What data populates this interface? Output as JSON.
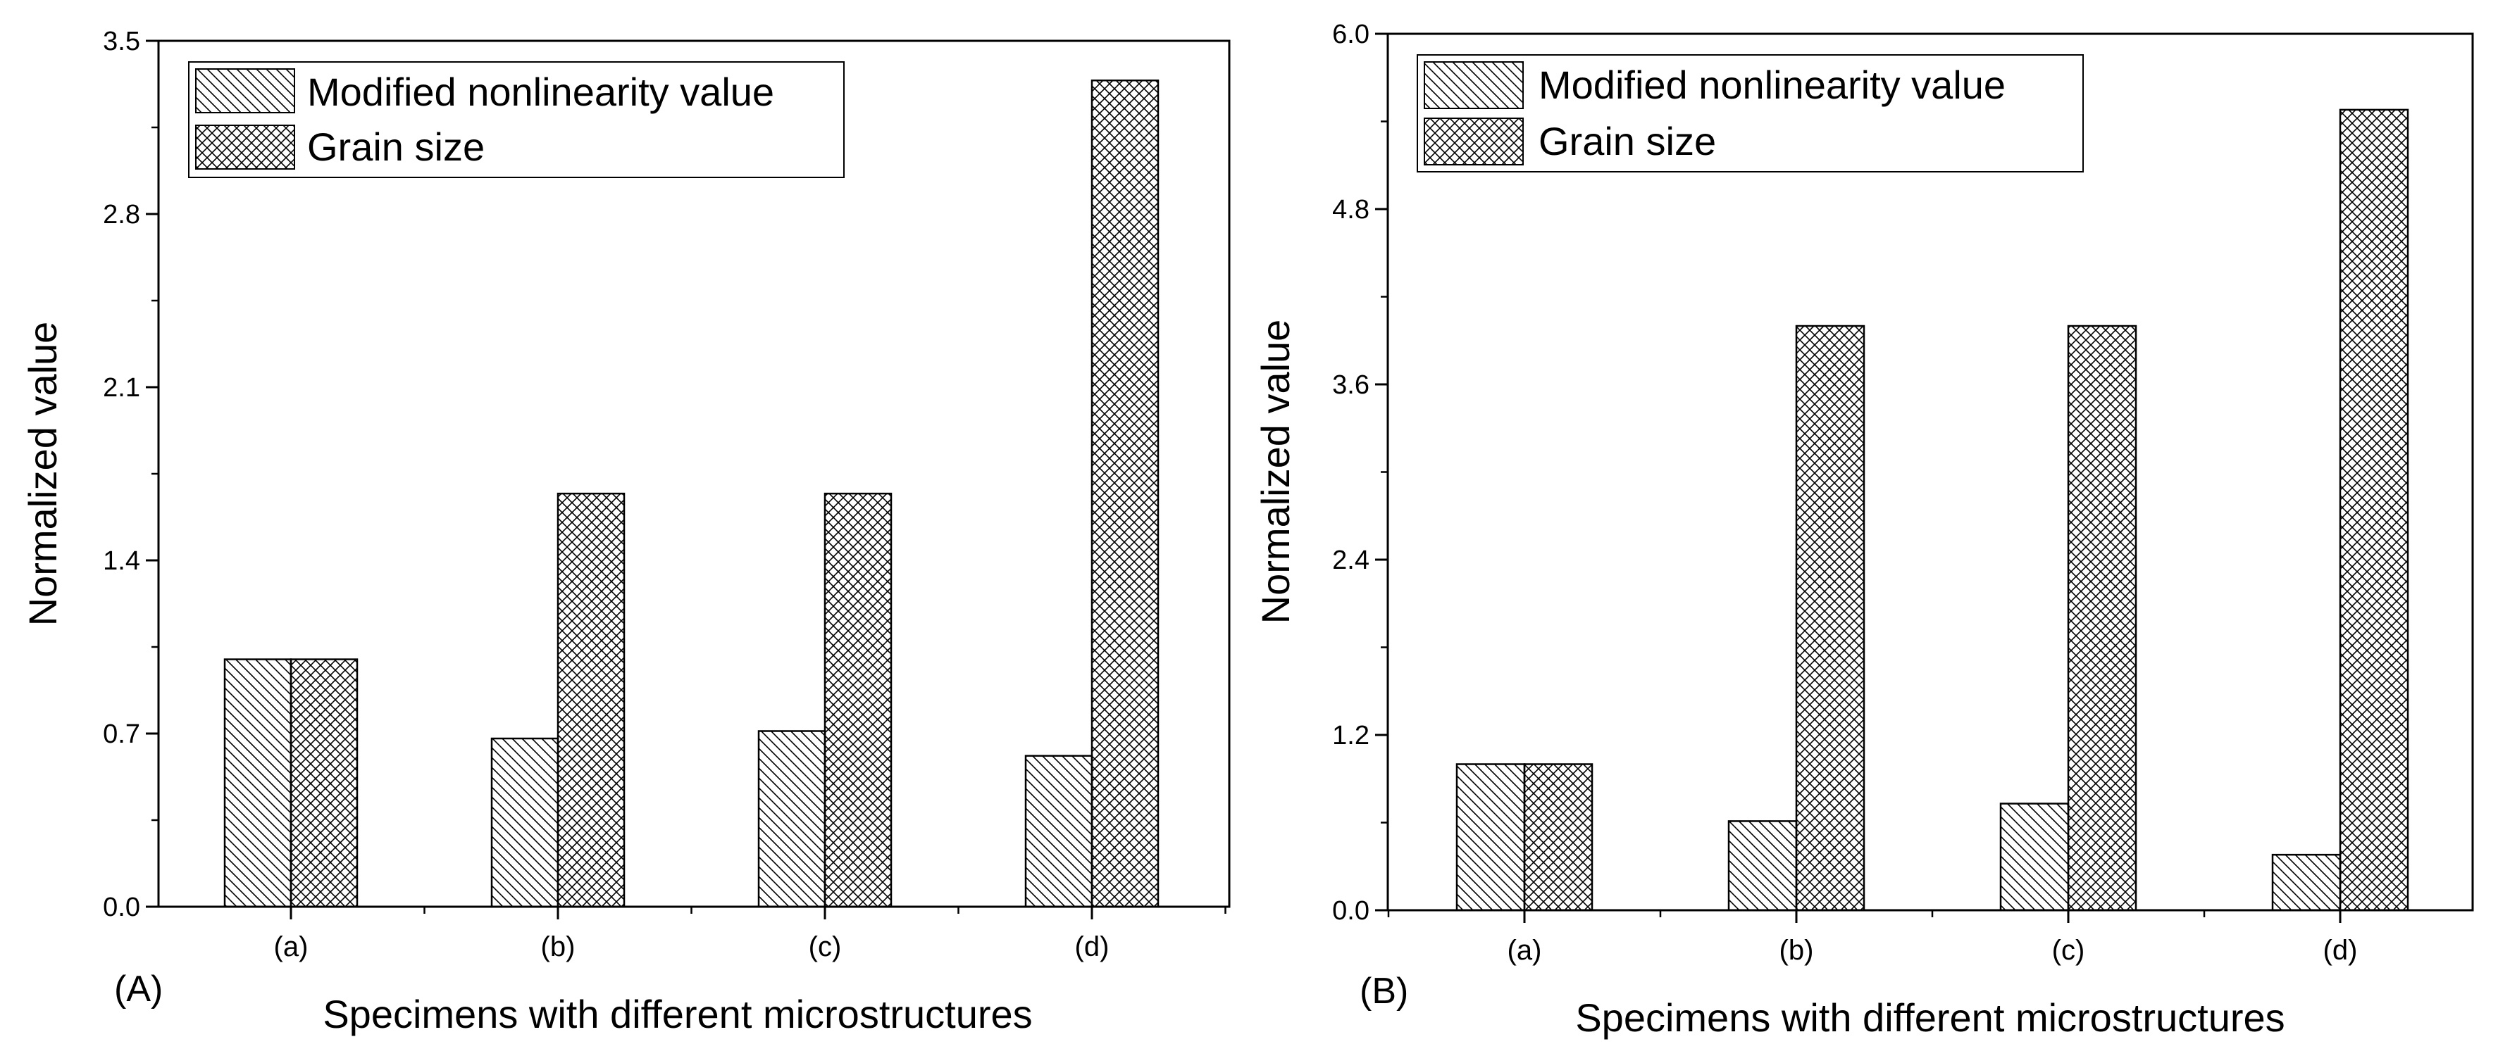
{
  "chart_data": [
    {
      "type": "bar",
      "panel_label": "(A)",
      "categories": [
        "(a)",
        "(b)",
        "(c)",
        "(d)"
      ],
      "series": [
        {
          "name": "Modified nonlinearity value",
          "pattern": "diagonal-hatch",
          "values": [
            1.0,
            0.68,
            0.71,
            0.61
          ]
        },
        {
          "name": "Grain size",
          "pattern": "cross-hatch",
          "values": [
            1.0,
            1.67,
            1.67,
            3.34
          ]
        }
      ],
      "xlabel": "Specimens with different microstructures",
      "ylabel": "Normalized value",
      "ylim": [
        0,
        3.5
      ],
      "yticks": [
        "0.0",
        "0.7",
        "1.4",
        "2.1",
        "2.8",
        "3.5"
      ],
      "legend_position": "top-left",
      "grid": false
    },
    {
      "type": "bar",
      "panel_label": "(B)",
      "categories": [
        "(a)",
        "(b)",
        "(c)",
        "(d)"
      ],
      "series": [
        {
          "name": "Modified nonlinearity value",
          "pattern": "diagonal-hatch",
          "values": [
            1.0,
            0.61,
            0.73,
            0.38
          ]
        },
        {
          "name": "Grain size",
          "pattern": "cross-hatch",
          "values": [
            1.0,
            4.0,
            4.0,
            5.48
          ]
        }
      ],
      "xlabel": "Specimens with different microstructures",
      "ylabel": "Normalized value",
      "ylim": [
        0,
        6.0
      ],
      "yticks": [
        "0.0",
        "1.2",
        "2.4",
        "3.6",
        "4.8",
        "6.0"
      ],
      "legend_position": "top-left",
      "grid": false
    }
  ]
}
